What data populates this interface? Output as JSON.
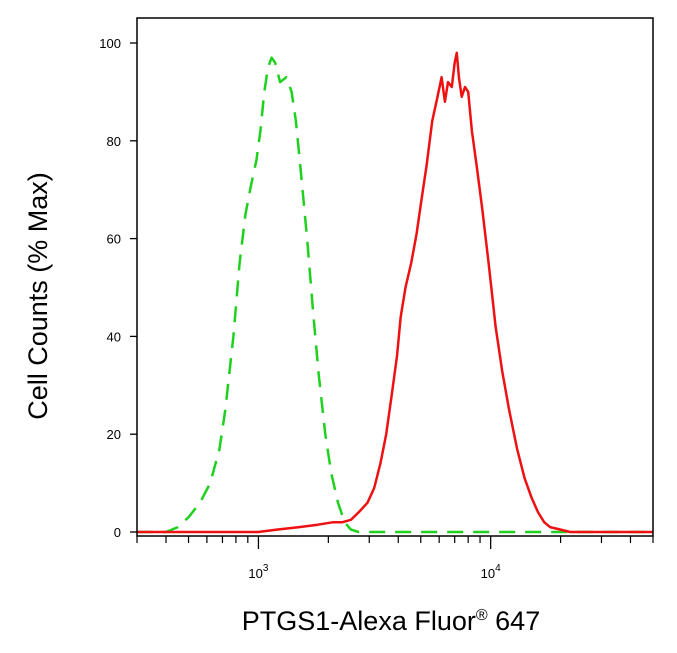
{
  "chart_data": {
    "type": "line",
    "title": "",
    "xlabel_main": "PTGS1-Alexa Fluor",
    "xlabel_reg": "®",
    "xlabel_tail": " 647",
    "ylabel": "Cell Counts (% Max)",
    "x_scale": "log",
    "xlim": [
      300,
      50000
    ],
    "ylim": [
      0,
      100
    ],
    "y_ticks": [
      0,
      20,
      40,
      60,
      80,
      100
    ],
    "y_tick_labels": [
      "0",
      "20",
      "40",
      "60",
      "80",
      "100"
    ],
    "x_major_ticks": [
      {
        "value": 1000,
        "base": "10",
        "exp": "3"
      },
      {
        "value": 10000,
        "base": "10",
        "exp": "4"
      }
    ],
    "x_minor_ticks": [
      300,
      400,
      500,
      600,
      700,
      800,
      900,
      2000,
      3000,
      4000,
      5000,
      6000,
      7000,
      8000,
      9000,
      20000,
      30000,
      40000,
      50000
    ],
    "grid": false,
    "legend": "none",
    "series": [
      {
        "color": "#1fd11f",
        "style": "dashed",
        "points": [
          [
            300,
            0
          ],
          [
            400,
            0
          ],
          [
            450,
            1
          ],
          [
            500,
            3
          ],
          [
            560,
            6
          ],
          [
            620,
            10
          ],
          [
            680,
            17
          ],
          [
            720,
            25
          ],
          [
            780,
            40
          ],
          [
            830,
            55
          ],
          [
            880,
            65
          ],
          [
            930,
            71
          ],
          [
            980,
            76
          ],
          [
            1020,
            82
          ],
          [
            1060,
            90
          ],
          [
            1100,
            95
          ],
          [
            1140,
            97
          ],
          [
            1180,
            96
          ],
          [
            1240,
            92
          ],
          [
            1320,
            93
          ],
          [
            1390,
            90
          ],
          [
            1450,
            84
          ],
          [
            1520,
            74
          ],
          [
            1620,
            60
          ],
          [
            1720,
            45
          ],
          [
            1820,
            32
          ],
          [
            1940,
            20
          ],
          [
            2060,
            12
          ],
          [
            2200,
            6
          ],
          [
            2350,
            2
          ],
          [
            2500,
            0.5
          ],
          [
            2700,
            0
          ],
          [
            5000,
            0
          ],
          [
            10000,
            0
          ],
          [
            20000,
            0
          ],
          [
            50000,
            0
          ]
        ]
      },
      {
        "color": "#ee1111",
        "style": "solid",
        "points": [
          [
            300,
            0
          ],
          [
            1000,
            0
          ],
          [
            1200,
            0.5
          ],
          [
            1500,
            1
          ],
          [
            1800,
            1.5
          ],
          [
            2100,
            2
          ],
          [
            2300,
            2
          ],
          [
            2500,
            2.5
          ],
          [
            2700,
            4
          ],
          [
            2950,
            6
          ],
          [
            3150,
            9
          ],
          [
            3350,
            14
          ],
          [
            3550,
            20
          ],
          [
            3750,
            28
          ],
          [
            3950,
            36
          ],
          [
            4100,
            44
          ],
          [
            4300,
            50
          ],
          [
            4550,
            55
          ],
          [
            4800,
            61
          ],
          [
            5000,
            67
          ],
          [
            5300,
            75
          ],
          [
            5600,
            84
          ],
          [
            5900,
            89
          ],
          [
            6150,
            93
          ],
          [
            6350,
            88
          ],
          [
            6550,
            92
          ],
          [
            6800,
            91
          ],
          [
            7000,
            96
          ],
          [
            7150,
            98
          ],
          [
            7300,
            93
          ],
          [
            7500,
            89
          ],
          [
            7750,
            91
          ],
          [
            8000,
            90
          ],
          [
            8300,
            82
          ],
          [
            8700,
            75
          ],
          [
            9200,
            66
          ],
          [
            9800,
            55
          ],
          [
            10500,
            42
          ],
          [
            11200,
            33
          ],
          [
            12000,
            25
          ],
          [
            13000,
            17
          ],
          [
            14000,
            11
          ],
          [
            15000,
            7
          ],
          [
            16000,
            4
          ],
          [
            17000,
            2
          ],
          [
            18000,
            1
          ],
          [
            20000,
            0.5
          ],
          [
            22000,
            0
          ],
          [
            30000,
            0
          ],
          [
            50000,
            0
          ]
        ]
      }
    ]
  }
}
